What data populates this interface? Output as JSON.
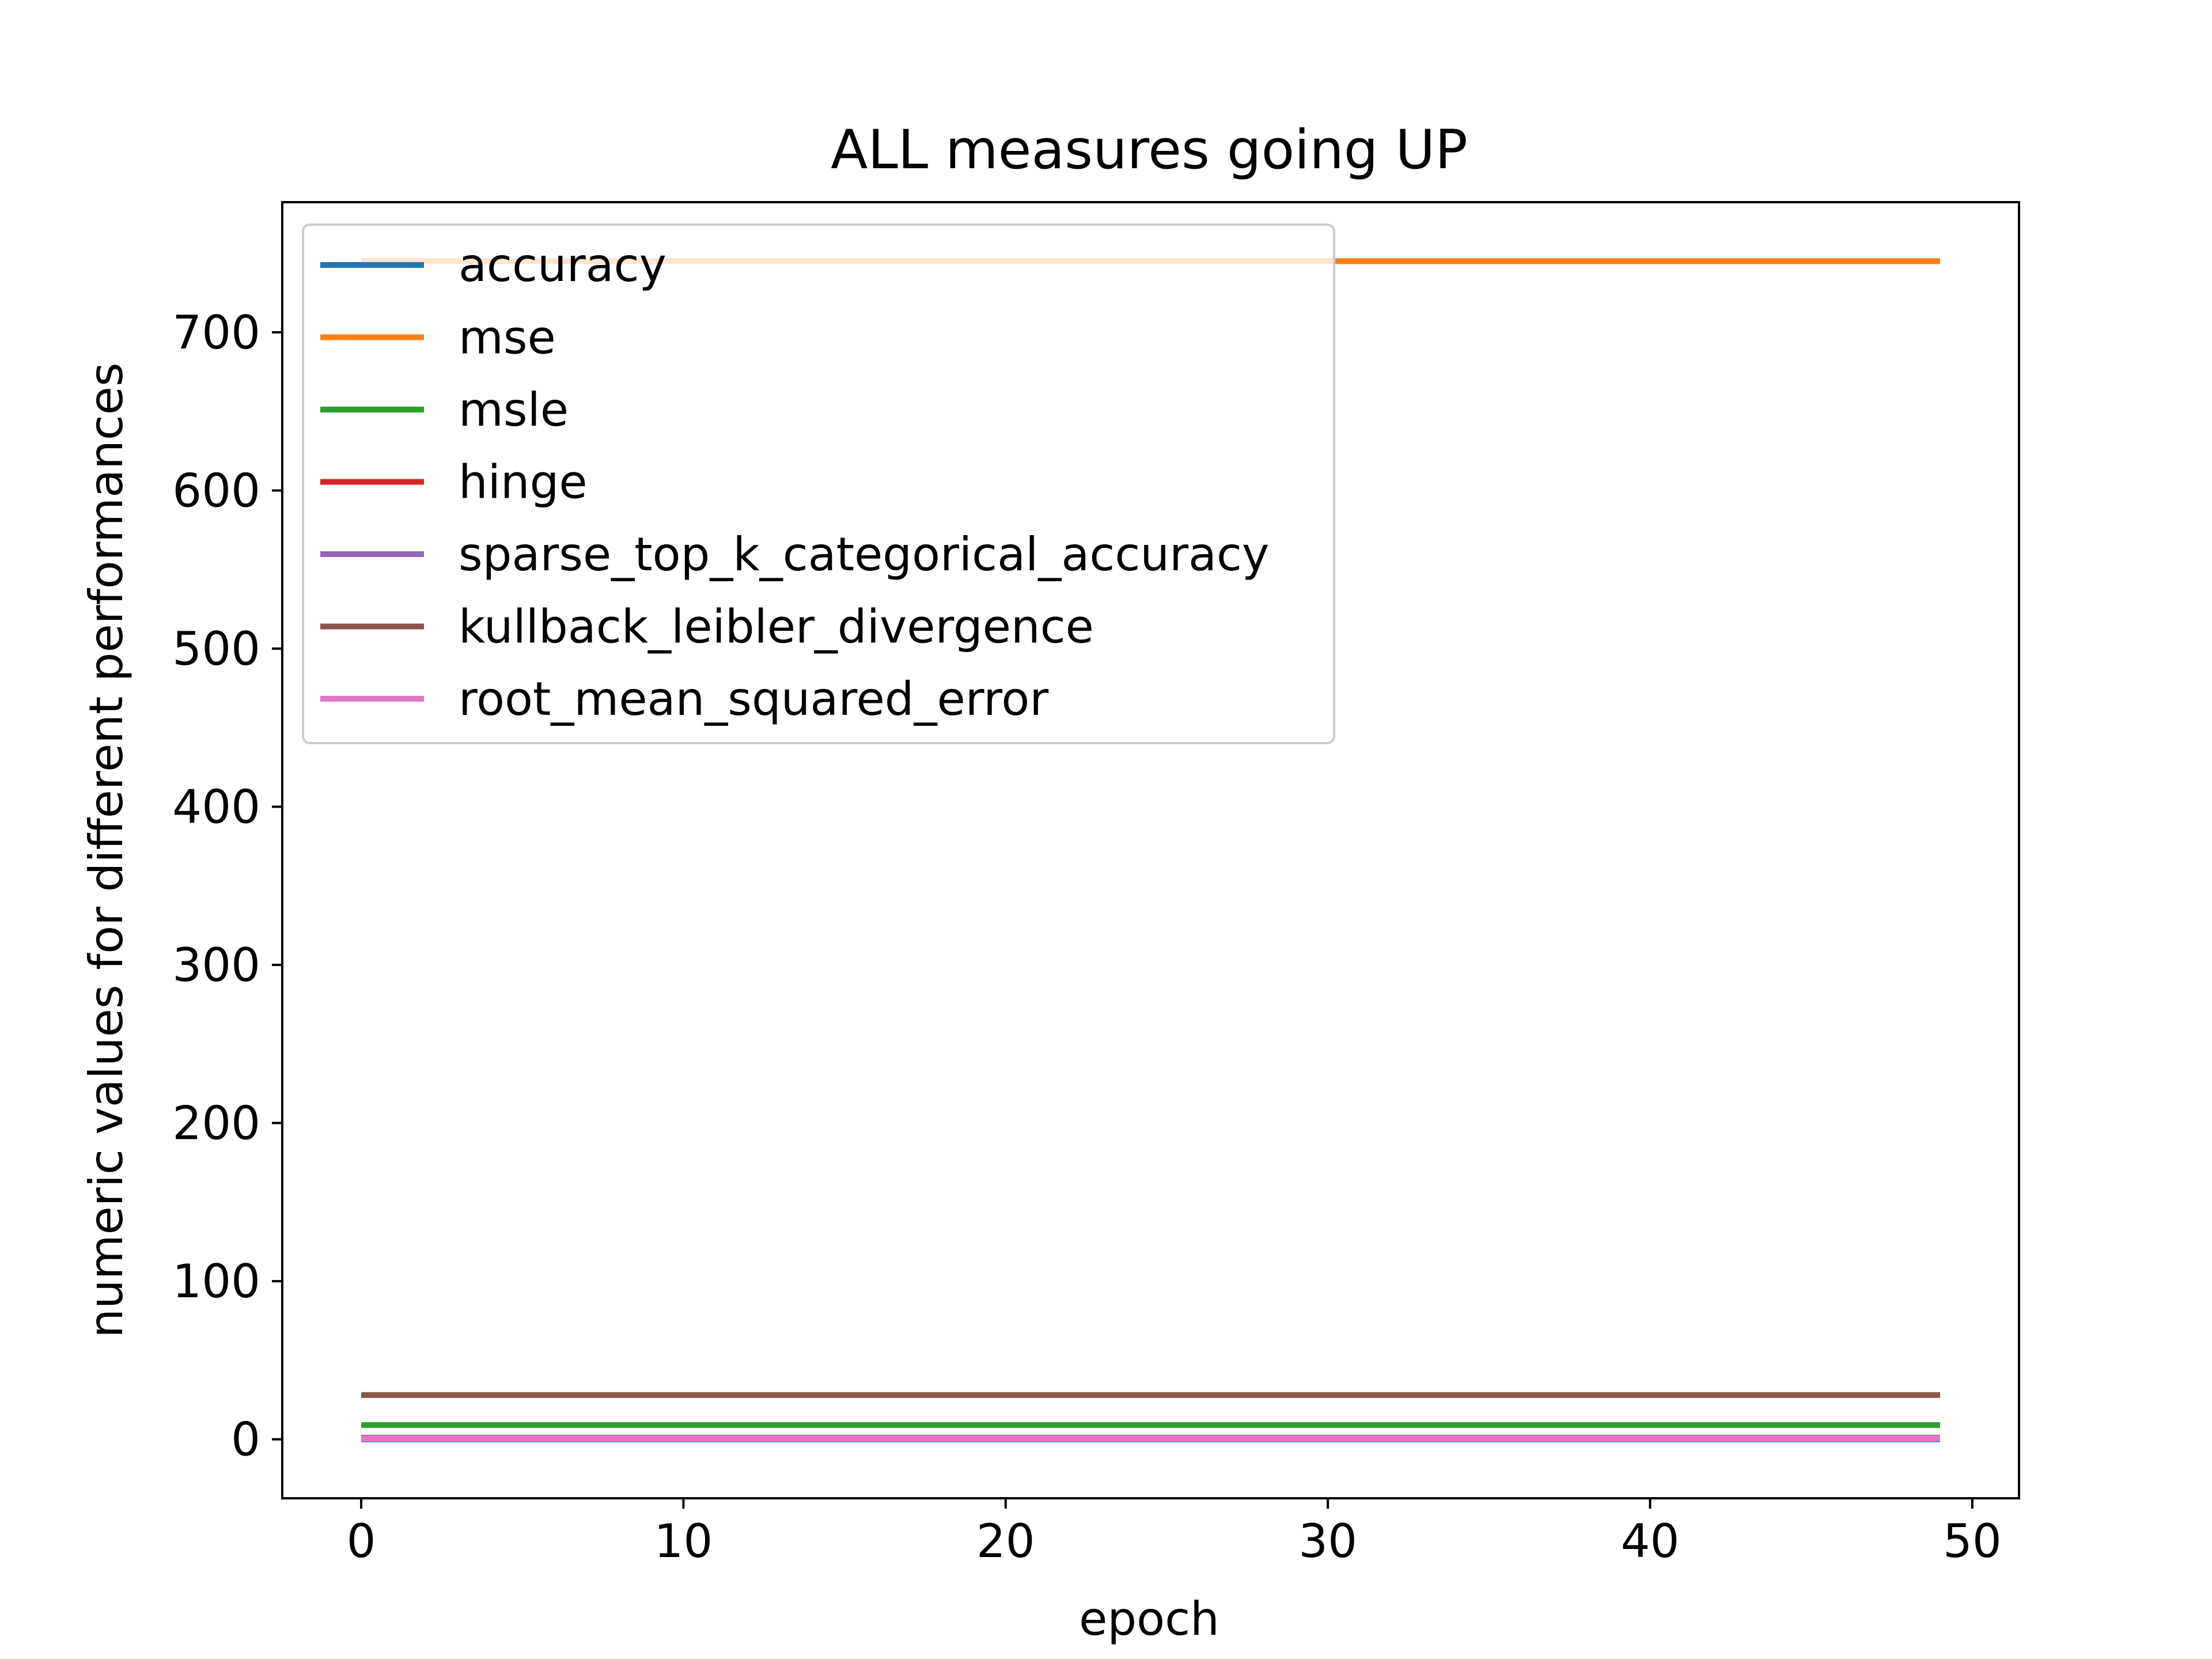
{
  "chart_data": {
    "type": "line",
    "title": "ALL measures going UP",
    "xlabel": "epoch",
    "ylabel": "numeric values for different performances",
    "xlim": [
      -2.45,
      51.45
    ],
    "ylim": [
      -37.3,
      782.3
    ],
    "xticks": [
      0,
      10,
      20,
      30,
      40,
      50
    ],
    "yticks": [
      0,
      100,
      200,
      300,
      400,
      500,
      600,
      700
    ],
    "x": {
      "start": 0,
      "end": 49,
      "step": 1
    },
    "grid": false,
    "legend_position": "upper left",
    "series": [
      {
        "name": "accuracy",
        "color": "#1f77b4",
        "constant_value": 0.0
      },
      {
        "name": "mse",
        "color": "#ff7f0e",
        "constant_value": 745.0
      },
      {
        "name": "msle",
        "color": "#2ca02c",
        "constant_value": 9.0
      },
      {
        "name": "hinge",
        "color": "#d62728",
        "constant_value": 1.0
      },
      {
        "name": "sparse_top_k_categorical_accuracy",
        "color": "#9467bd",
        "constant_value": 1.0
      },
      {
        "name": "kullback_leibler_divergence",
        "color": "#8c564b",
        "constant_value": 28.0
      },
      {
        "name": "root_mean_squared_error",
        "color": "#e377c2",
        "constant_value": 0.5
      }
    ]
  }
}
